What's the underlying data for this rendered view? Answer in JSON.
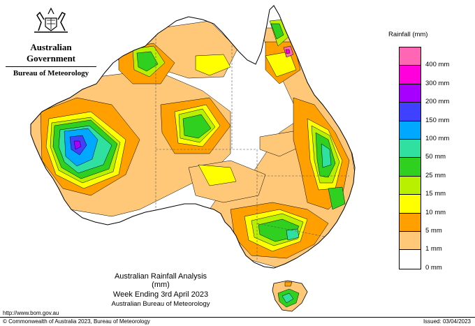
{
  "header": {
    "government": "Australian Government",
    "agency": "Bureau of Meteorology"
  },
  "legend": {
    "title": "Rainfall (mm)",
    "items": [
      {
        "label": "",
        "color": "#ff66b3"
      },
      {
        "label": "400 mm",
        "color": "#ff00dd"
      },
      {
        "label": "300 mm",
        "color": "#a800ff"
      },
      {
        "label": "200 mm",
        "color": "#4040ff"
      },
      {
        "label": "150 mm",
        "color": "#00a8ff"
      },
      {
        "label": "100 mm",
        "color": "#30e0a0"
      },
      {
        "label": "50 mm",
        "color": "#30d020"
      },
      {
        "label": "25 mm",
        "color": "#b8f000"
      },
      {
        "label": "15 mm",
        "color": "#ffff00"
      },
      {
        "label": "10 mm",
        "color": "#ffa000"
      },
      {
        "label": "5 mm",
        "color": "#ffc878"
      },
      {
        "label": "1 mm",
        "color": "#ffffff"
      },
      {
        "label": "0 mm",
        "color": ""
      }
    ]
  },
  "caption": {
    "line1": "Australian Rainfall Analysis (mm)",
    "line2": "Week Ending 3rd April 2023",
    "line3": "Australian Bureau of Meteorology"
  },
  "footer": {
    "url": "http://www.bom.gov.au",
    "copyright": "© Commonwealth of Australia 2023, Bureau of Meteorology",
    "issued": "Issued: 03/04/2023"
  }
}
